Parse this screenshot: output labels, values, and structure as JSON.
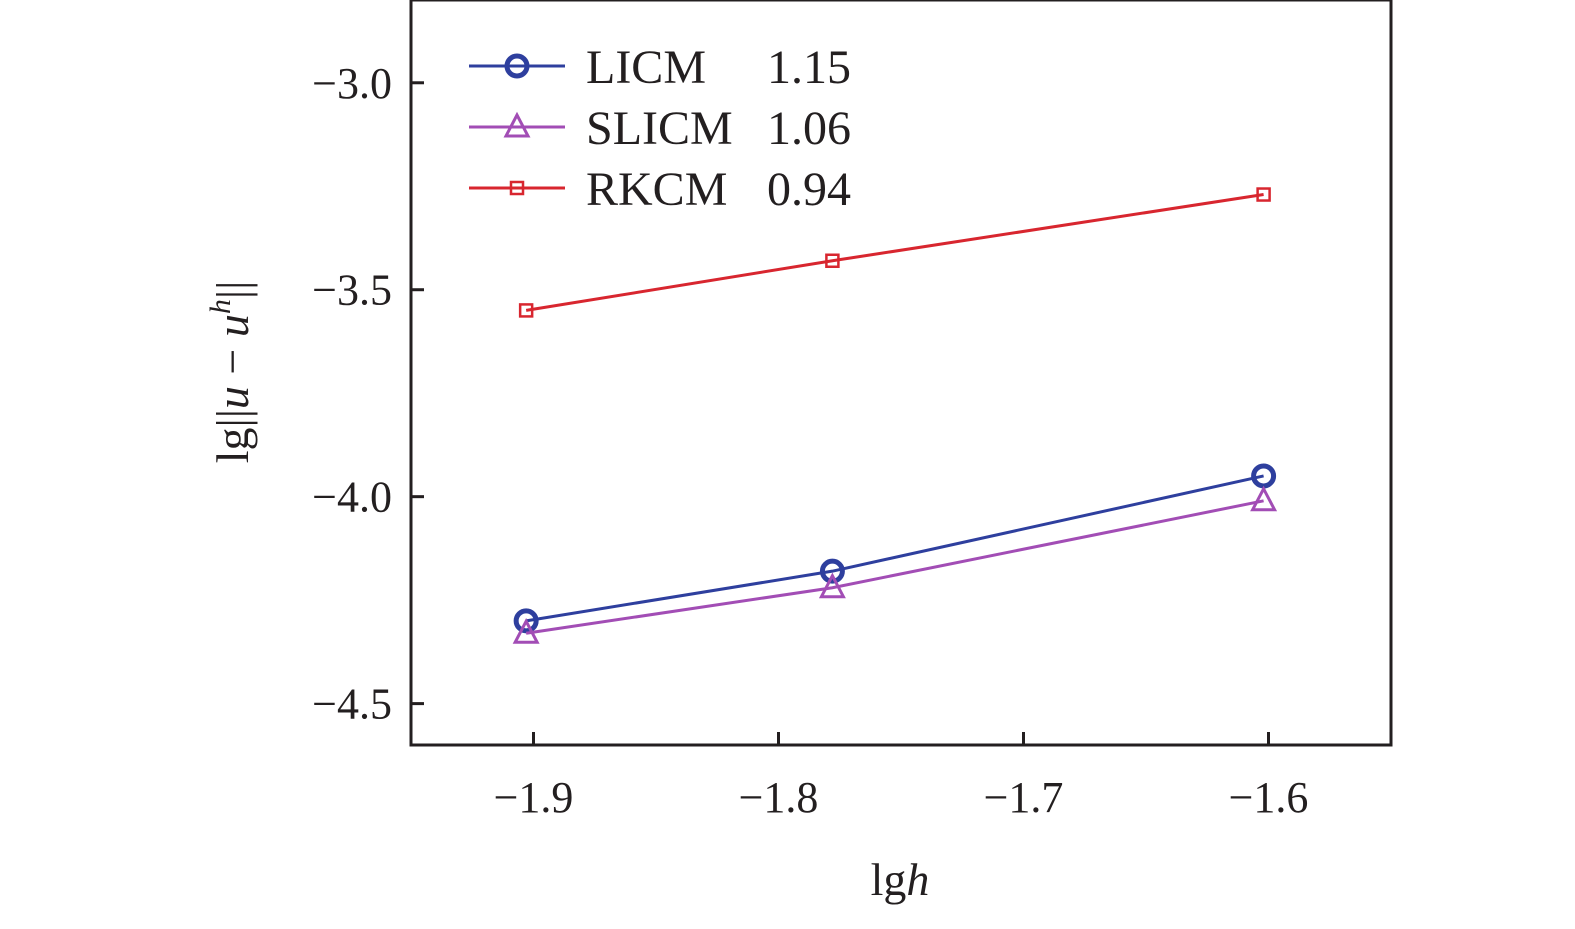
{
  "chart_data": {
    "type": "line",
    "xlabel_parts": [
      "lg",
      "h"
    ],
    "ylabel_parts": [
      "lg||",
      "u",
      " − ",
      "u",
      "h",
      "||"
    ],
    "xlim": [
      -1.95,
      -1.55
    ],
    "ylim": [
      -4.6,
      -2.8
    ],
    "xticks": [
      -1.9,
      -1.8,
      -1.7,
      -1.6
    ],
    "xtick_labels": [
      "−1.9",
      "−1.8",
      "−1.7",
      "−1.6"
    ],
    "yticks": [
      -3.0,
      -3.5,
      -4.0,
      -4.5
    ],
    "ytick_labels": [
      "−3.0",
      "−3.5",
      "−4.0",
      "−4.5"
    ],
    "grid": false,
    "legend_position": "top-left",
    "series": [
      {
        "name": "LICM",
        "legend_value": "1.15",
        "marker": "circle",
        "color": "#2e3f9e",
        "x": [
          -1.903,
          -1.778,
          -1.602
        ],
        "y": [
          -4.3,
          -4.18,
          -3.95
        ]
      },
      {
        "name": "SLICM",
        "legend_value": "1.06",
        "marker": "triangle",
        "color": "#a24db5",
        "x": [
          -1.903,
          -1.778,
          -1.602
        ],
        "y": [
          -4.33,
          -4.22,
          -4.01
        ]
      },
      {
        "name": "RKCM",
        "legend_value": "0.94",
        "marker": "square",
        "color": "#d8262f",
        "x": [
          -1.903,
          -1.778,
          -1.602
        ],
        "y": [
          -3.55,
          -3.43,
          -3.27
        ]
      }
    ]
  }
}
